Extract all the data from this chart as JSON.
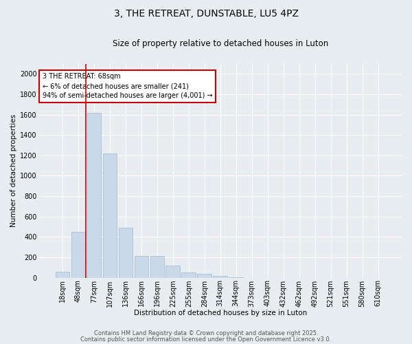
{
  "title": "3, THE RETREAT, DUNSTABLE, LU5 4PZ",
  "subtitle": "Size of property relative to detached houses in Luton",
  "xlabel": "Distribution of detached houses by size in Luton",
  "ylabel": "Number of detached properties",
  "categories": [
    "18sqm",
    "48sqm",
    "77sqm",
    "107sqm",
    "136sqm",
    "166sqm",
    "196sqm",
    "225sqm",
    "255sqm",
    "284sqm",
    "314sqm",
    "344sqm",
    "373sqm",
    "403sqm",
    "432sqm",
    "462sqm",
    "492sqm",
    "521sqm",
    "551sqm",
    "580sqm",
    "610sqm"
  ],
  "values": [
    60,
    450,
    1620,
    1220,
    490,
    215,
    215,
    120,
    50,
    40,
    15,
    5,
    0,
    0,
    0,
    0,
    0,
    0,
    0,
    0,
    0
  ],
  "bar_color": "#c9d9ea",
  "bar_edge_color": "#a0b8d0",
  "vline_color": "#cc0000",
  "annotation_text": "3 THE RETREAT: 68sqm\n← 6% of detached houses are smaller (241)\n94% of semi-detached houses are larger (4,001) →",
  "annotation_box_color": "#ffffff",
  "annotation_box_edge": "#cc0000",
  "ylim": [
    0,
    2100
  ],
  "yticks": [
    0,
    200,
    400,
    600,
    800,
    1000,
    1200,
    1400,
    1600,
    1800,
    2000
  ],
  "background_color": "#e8edf2",
  "grid_color": "#ffffff",
  "footer_line1": "Contains HM Land Registry data © Crown copyright and database right 2025.",
  "footer_line2": "Contains public sector information licensed under the Open Government Licence v3.0.",
  "title_fontsize": 10,
  "subtitle_fontsize": 8.5,
  "annotation_fontsize": 7,
  "axis_label_fontsize": 7.5,
  "tick_fontsize": 7,
  "footer_fontsize": 6
}
